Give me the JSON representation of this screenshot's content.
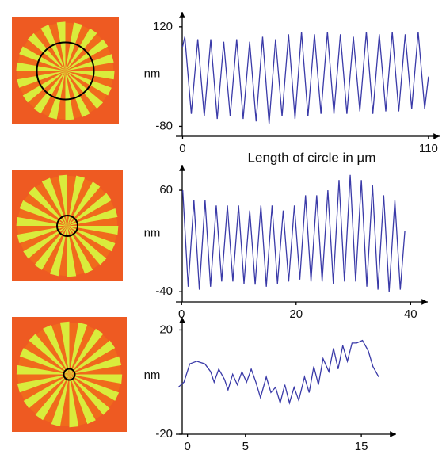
{
  "chart_data": [
    {
      "type": "line",
      "ylabel": "nm",
      "xlabel": "Length of circle in µm",
      "color": "#3a3aa8",
      "xlim": [
        -3,
        115
      ],
      "ylim": [
        -100,
        150
      ],
      "xticks": [
        0,
        110
      ],
      "yticks": [
        -80,
        120
      ],
      "x": [
        0,
        1,
        3.9,
        6.8,
        9.7,
        12.6,
        15.5,
        18.4,
        21.3,
        24.2,
        27.1,
        30,
        32.9,
        35.8,
        38.7,
        41.6,
        44.5,
        47.4,
        50.3,
        53.2,
        56.1,
        59,
        61.9,
        64.8,
        67.7,
        70.6,
        73.5,
        76.4,
        79.3,
        82.2,
        85.1,
        88,
        90.9,
        93.8,
        96.7,
        99.6,
        102.5,
        105.4,
        108.3,
        110
      ],
      "values": [
        80,
        100,
        -55,
        95,
        -60,
        95,
        -65,
        90,
        -60,
        95,
        -65,
        90,
        -70,
        100,
        -75,
        95,
        -60,
        105,
        -65,
        110,
        -60,
        105,
        -55,
        110,
        -55,
        105,
        -55,
        100,
        -50,
        110,
        -55,
        105,
        -50,
        110,
        -50,
        105,
        -45,
        110,
        -45,
        20
      ]
    },
    {
      "type": "line",
      "ylabel": "nm",
      "color": "#3a3aa8",
      "xlim": [
        -1,
        43
      ],
      "ylim": [
        -50,
        85
      ],
      "xticks": [
        0,
        20,
        40
      ],
      "yticks": [
        -40,
        60
      ],
      "x": [
        0.2,
        1.15,
        2.15,
        3.1,
        4.1,
        5.05,
        6.05,
        7.0,
        8.0,
        8.95,
        9.95,
        10.9,
        11.9,
        12.85,
        13.85,
        14.8,
        15.8,
        16.75,
        17.75,
        18.7,
        19.7,
        20.65,
        21.65,
        22.6,
        23.6,
        24.55,
        25.55,
        26.5,
        27.5,
        28.45,
        29.45,
        30.4,
        31.4,
        32.35,
        33.35,
        34.3,
        35.3,
        36.25,
        37.25,
        38.2,
        39
      ],
      "values": [
        60,
        -35,
        50,
        -38,
        50,
        -35,
        45,
        -30,
        45,
        -30,
        45,
        -32,
        40,
        -33,
        45,
        -35,
        45,
        -32,
        40,
        -30,
        45,
        -28,
        55,
        -30,
        55,
        -30,
        60,
        -32,
        70,
        -30,
        75,
        -30,
        70,
        -35,
        65,
        -38,
        55,
        -40,
        50,
        -38,
        20
      ]
    },
    {
      "type": "line",
      "ylabel": "nm",
      "color": "#3a3aa8",
      "xlim": [
        -1,
        18
      ],
      "ylim": [
        -20,
        25
      ],
      "xticks": [
        0,
        5,
        15
      ],
      "yticks": [
        -20,
        20
      ],
      "x": [
        -0.8,
        -0.3,
        0.2,
        0.8,
        1.5,
        2,
        2.3,
        2.7,
        3.2,
        3.5,
        3.9,
        4.3,
        4.7,
        5.1,
        5.5,
        5.9,
        6.3,
        6.8,
        7.2,
        7.6,
        8.0,
        8.4,
        8.8,
        9.2,
        9.6,
        10.1,
        10.5,
        10.9,
        11.3,
        11.7,
        12.2,
        12.6,
        13.0,
        13.4,
        13.8,
        14.2,
        14.6,
        15.1,
        15.6,
        16.0,
        16.5
      ],
      "values": [
        -2,
        0,
        7,
        8,
        7,
        4,
        0,
        5,
        1,
        -3,
        3,
        -1,
        4,
        0,
        5,
        0,
        -6,
        2,
        -4,
        -2,
        -8,
        -1,
        -8,
        -2,
        -7,
        2,
        -4,
        6,
        -1,
        9,
        4,
        13,
        5,
        14,
        8,
        15,
        15,
        16,
        12,
        6,
        2
      ]
    }
  ]
}
